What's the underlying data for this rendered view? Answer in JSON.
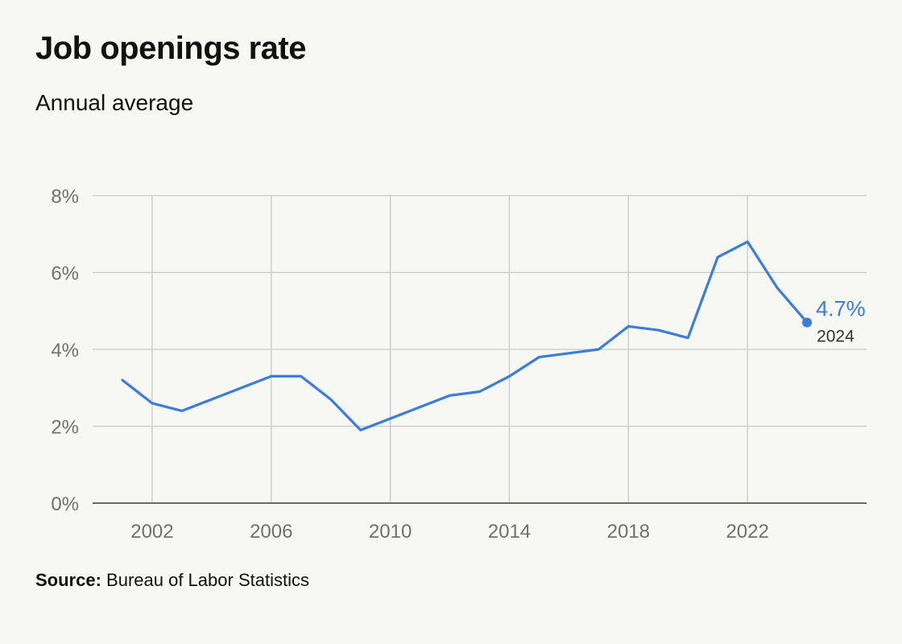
{
  "title": "Job openings rate",
  "subtitle": "Annual average",
  "source": {
    "label": "Source:",
    "text": "Bureau of Labor Statistics"
  },
  "colors": {
    "line": "#3b7ddd",
    "grid": "#c8c8c8",
    "axis": "#6b6b6b",
    "tick_text": "#707070",
    "background": "#f7f7f3"
  },
  "chart_data": {
    "type": "line",
    "title": "Job openings rate",
    "subtitle": "Annual average",
    "xlabel": "",
    "ylabel": "",
    "ylim": [
      0,
      8
    ],
    "xlim": [
      2000,
      2026
    ],
    "grid": true,
    "y_ticks": [
      0,
      2,
      4,
      6,
      8
    ],
    "y_tick_labels": [
      "0%",
      "2%",
      "4%",
      "6%",
      "8%"
    ],
    "x_ticks": [
      2002,
      2006,
      2010,
      2014,
      2018,
      2022
    ],
    "x_tick_labels": [
      "2002",
      "2006",
      "2010",
      "2014",
      "2018",
      "2022"
    ],
    "series": [
      {
        "x": [
          2001,
          2002,
          2003,
          2004,
          2005,
          2006,
          2007,
          2008,
          2009,
          2010,
          2011,
          2012,
          2013,
          2014,
          2015,
          2016,
          2017,
          2018,
          2019,
          2020,
          2021,
          2022,
          2023,
          2024
        ],
        "values": [
          3.2,
          2.6,
          2.4,
          2.7,
          3.0,
          3.3,
          3.3,
          2.7,
          1.9,
          2.2,
          2.5,
          2.8,
          2.9,
          3.3,
          3.8,
          3.9,
          4.0,
          4.6,
          4.5,
          4.3,
          6.4,
          6.8,
          5.6,
          4.7
        ]
      }
    ],
    "annotation": {
      "value_label": "4.7%",
      "year_label": "2024",
      "x": 2024,
      "y": 4.7
    }
  }
}
